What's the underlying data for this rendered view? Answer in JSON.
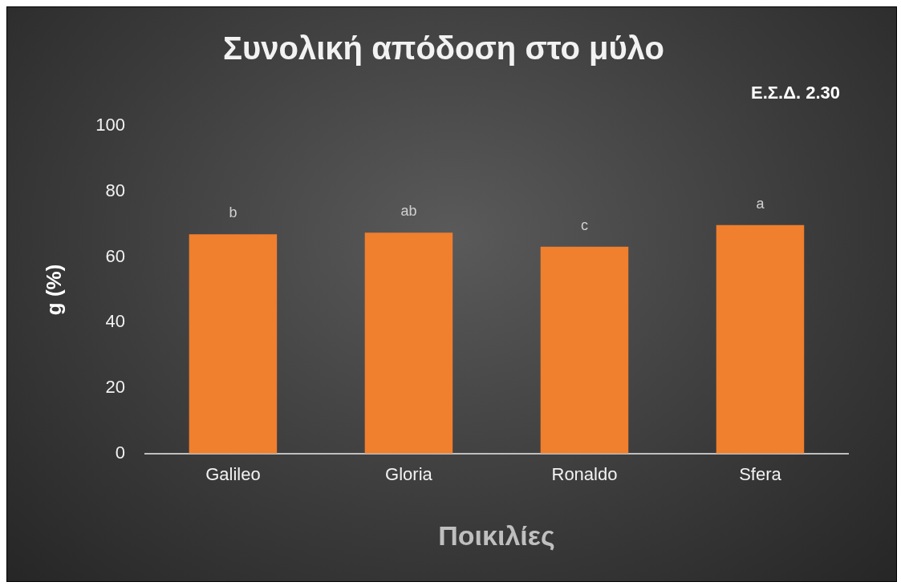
{
  "chart_data": {
    "type": "bar",
    "title": "Συνολική απόδοση στο μύλο",
    "xlabel": "Ποικιλίες",
    "ylabel": "g (%)",
    "categories": [
      "Galileo",
      "Gloria",
      "Ronaldo",
      "Sfera"
    ],
    "values": [
      66.9,
      67.4,
      63.1,
      69.7
    ],
    "color": "#f07f2e",
    "ylim": [
      0,
      100
    ],
    "yticks": [
      0,
      20,
      40,
      60,
      80,
      100
    ],
    "grid": false,
    "legend": false,
    "annotations": [
      "Ε.Σ.Δ. 2.30",
      {
        "text": "b",
        "x": "Galileo",
        "y": 66.9
      },
      {
        "text": "ab",
        "x": "Gloria",
        "y": 67.4
      },
      {
        "text": "c",
        "x": "Ronaldo",
        "y": 63.1
      },
      {
        "text": "a",
        "x": "Sfera",
        "y": 69.7
      }
    ]
  }
}
